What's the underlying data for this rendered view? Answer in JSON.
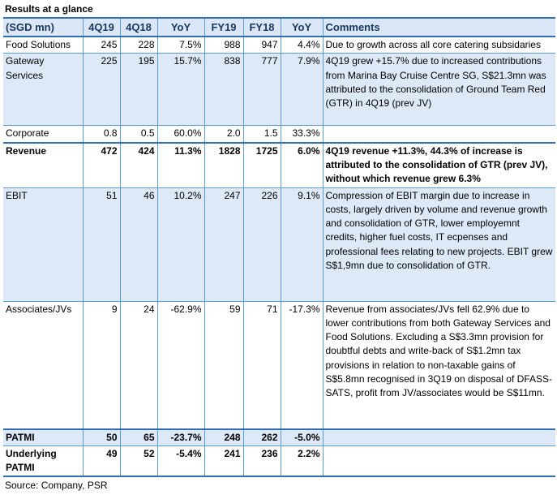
{
  "title": "Results at a glance",
  "headers": [
    "(SGD mn)",
    "4Q19",
    "4Q18",
    "YoY",
    "FY19",
    "FY18",
    "YoY",
    "Comments"
  ],
  "rows": [
    {
      "label": "Food Solutions",
      "q19": "245",
      "q18": "228",
      "yoy_q": "7.5%",
      "fy19": "988",
      "fy18": "947",
      "yoy_fy": "4.4%",
      "comment": "Due to growth across all core catering subsidaries"
    },
    {
      "label": "Gateway Services",
      "q19": "225",
      "q18": "195",
      "yoy_q": "15.7%",
      "fy19": "838",
      "fy18": "777",
      "yoy_fy": "7.9%",
      "comment": "4Q19 grew +15.7% due to increased contributions from Marina Bay Cruise Centre SG, S$21.3mn was attributed to the consolidation of Ground Team Red (GTR) in 4Q19 (prev JV)"
    },
    {
      "label": "Corporate",
      "q19": "0.8",
      "q18": "0.5",
      "yoy_q": "60.0%",
      "fy19": "2.0",
      "fy18": "1.5",
      "yoy_fy": "33.3%",
      "comment": ""
    },
    {
      "label": "Revenue",
      "q19": "472",
      "q18": "424",
      "yoy_q": "11.3%",
      "fy19": "1828",
      "fy18": "1725",
      "yoy_fy": "6.0%",
      "comment": "4Q19 revenue +11.3%, 44.3% of increase is attributed to the consolidation of GTR (prev JV), without which revenue grew 6.3%"
    },
    {
      "label": "EBIT",
      "q19": "51",
      "q18": "46",
      "yoy_q": "10.2%",
      "fy19": "247",
      "fy18": "226",
      "yoy_fy": "9.1%",
      "comment": "Compression of EBIT margin due to increase in costs, largely driven by volume and revenue growth and consolidation of GTR, lower employemnt credits, higher fuel costs, IT ecpenses and professional fees relating to new projects. EBIT grew S$1,9mn due to consolidation of GTR."
    },
    {
      "label": "Associates/JVs",
      "q19": "9",
      "q18": "24",
      "yoy_q": "-62.9%",
      "fy19": "59",
      "fy18": "71",
      "yoy_fy": "-17.3%",
      "comment": "Revenue from associates/JVs fell 62.9%  due to lower contributions  from both Gateway Services and Food Solutions. Excluding a S$3.3mn provision for doubtful debts and write-back of S$1.2mn tax provisions in relation to non-taxable gains of S$5.8mn recognised in 3Q19 on disposal of DFASS-SATS, profit from JV/associates would be S$11mn."
    },
    {
      "label": "PATMI",
      "q19": "50",
      "q18": "65",
      "yoy_q": "-23.7%",
      "fy19": "248",
      "fy18": "262",
      "yoy_fy": "-5.0%",
      "comment": ""
    },
    {
      "label": "Underlying PATMI",
      "q19": "49",
      "q18": "52",
      "yoy_q": "-5.4%",
      "fy19": "241",
      "fy18": "236",
      "yoy_fy": "2.2%",
      "comment": ""
    }
  ],
  "source": "Source: Company, PSR",
  "colors": {
    "header_text": "#17375e",
    "header_bg": "#dbe7f6",
    "row_shade": "#dde9f7",
    "rule": "#2f6db5",
    "grid": "#5a9bd5"
  }
}
